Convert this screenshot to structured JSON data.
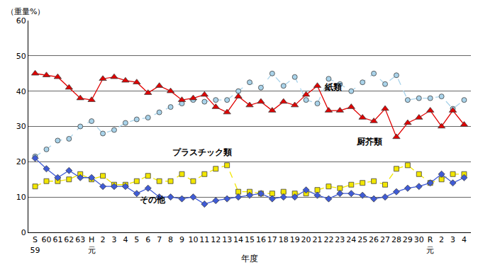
{
  "chart_data": {
    "type": "line",
    "y_label": "（重量%）",
    "x_label": "年度",
    "categories": [
      "S\n59",
      "60",
      "61",
      "62",
      "63",
      "H\n元",
      "2",
      "3",
      "4",
      "5",
      "6",
      "7",
      "8",
      "9",
      "10",
      "11",
      "12",
      "13",
      "14",
      "15",
      "16",
      "17",
      "18",
      "19",
      "20",
      "21",
      "22",
      "23",
      "24",
      "25",
      "26",
      "27",
      "28",
      "29",
      "30",
      "R\n元",
      "2",
      "3",
      "4"
    ],
    "series": [
      {
        "name": "紙類",
        "color": "#a9d3ea",
        "marker": "circle",
        "line_style": "dash",
        "values": [
          21.5,
          23.5,
          26,
          26.5,
          30,
          31.5,
          28,
          29,
          31,
          32,
          32.5,
          34,
          35.5,
          36.5,
          37.5,
          37,
          37.5,
          37.5,
          40,
          42.5,
          41,
          45,
          41.5,
          44,
          37.5,
          36.5,
          43.5,
          42,
          40,
          42.5,
          45,
          42,
          44.5,
          37.5,
          38,
          38,
          38.5,
          35,
          37.5
        ]
      },
      {
        "name": "厨芥類",
        "color": "#e00000",
        "marker": "triangle",
        "line_style": "solid",
        "values": [
          45,
          44.5,
          44,
          41,
          38,
          37.5,
          43.5,
          44,
          43,
          42.5,
          39.5,
          41.5,
          40,
          37.5,
          38,
          39,
          35.5,
          34,
          38.5,
          36,
          37,
          34.5,
          37,
          36,
          39,
          41.5,
          34.5,
          34.5,
          35.5,
          32.5,
          31.5,
          35,
          27,
          31,
          32.5,
          34.5,
          30,
          34.5,
          30.5
        ]
      },
      {
        "name": "プラスチック類",
        "color": "#f2e600",
        "marker": "square",
        "line_style": "dash",
        "values": [
          13,
          14.5,
          14.5,
          15,
          16.5,
          15,
          16,
          13.5,
          13.5,
          14.5,
          16,
          14.5,
          14.5,
          16.5,
          14.5,
          16.5,
          18,
          19,
          11.5,
          11.5,
          11,
          11,
          11.5,
          11,
          11,
          12,
          13,
          12.5,
          13.5,
          14,
          14.5,
          13.5,
          18,
          19,
          16.5,
          14,
          15,
          16.5,
          16.5
        ]
      },
      {
        "name": "その他",
        "color": "#3f5bd6",
        "marker": "diamond",
        "line_style": "solid",
        "values": [
          21,
          18,
          15.5,
          17.5,
          15.5,
          15.5,
          13,
          13,
          13,
          11,
          12.5,
          10,
          10,
          9.5,
          10,
          8,
          9,
          9.5,
          10,
          10.5,
          11,
          9.5,
          10,
          10,
          12,
          10.5,
          9.5,
          11,
          11,
          10.5,
          9.5,
          10,
          11.5,
          12.5,
          13,
          14,
          16.5,
          14,
          15.5
        ]
      }
    ],
    "ylim": [
      0,
      60
    ],
    "yticks": [
      0,
      10,
      20,
      30,
      40,
      50,
      60
    ],
    "grid": true,
    "legend": "none"
  }
}
